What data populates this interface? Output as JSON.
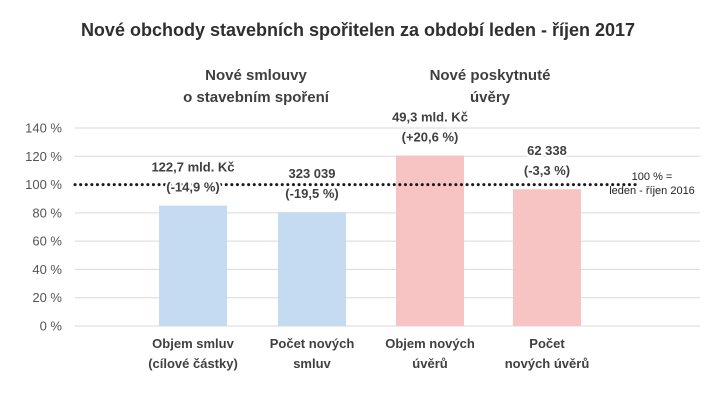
{
  "colors": {
    "smlouvy": "#c5dbf1",
    "uvery": "#f7c3c3",
    "grid": "#d9d9d9",
    "reference": "#1a1a1a"
  },
  "chart_data": {
    "type": "bar",
    "title": "Nové obchody stavebních spořitelen za období leden - říjen 2017",
    "groups": [
      {
        "lines": [
          "Nové smlouvy",
          "o stavebním spoření"
        ],
        "color_key": "smlouvy"
      },
      {
        "lines": [
          "Nové poskytnuté",
          "úvěry"
        ],
        "color_key": "uvery"
      }
    ],
    "ylim": [
      0,
      140
    ],
    "yticks": [
      0,
      20,
      40,
      60,
      80,
      100,
      120,
      140
    ],
    "ytick_labels": [
      "0 %",
      "20 %",
      "40 %",
      "60 %",
      "80 %",
      "100 %",
      "120 %",
      "140 %"
    ],
    "bars": [
      {
        "category": [
          "Objem smluv",
          "(cílové částky)"
        ],
        "value": 85.1,
        "label": [
          "122,7 mld. Kč",
          "(-14,9 %)"
        ],
        "group": 0
      },
      {
        "category": [
          "Počet  nových",
          "smluv"
        ],
        "value": 80.5,
        "label": [
          "323 039",
          "(-19,5 %)"
        ],
        "group": 0
      },
      {
        "category": [
          "Objem nových",
          "úvěrů"
        ],
        "value": 120.6,
        "label": [
          "49,3 mld. Kč",
          "(+20,6 %)"
        ],
        "group": 1
      },
      {
        "category": [
          "Počet",
          "nových úvěrů"
        ],
        "value": 96.7,
        "label": [
          "62 338",
          "(-3,3 %)"
        ],
        "group": 1
      }
    ],
    "reference_line": {
      "value": 100,
      "label": [
        "100 % =",
        "leden - říjen 2016"
      ],
      "style": "dotted"
    },
    "grid": true
  }
}
